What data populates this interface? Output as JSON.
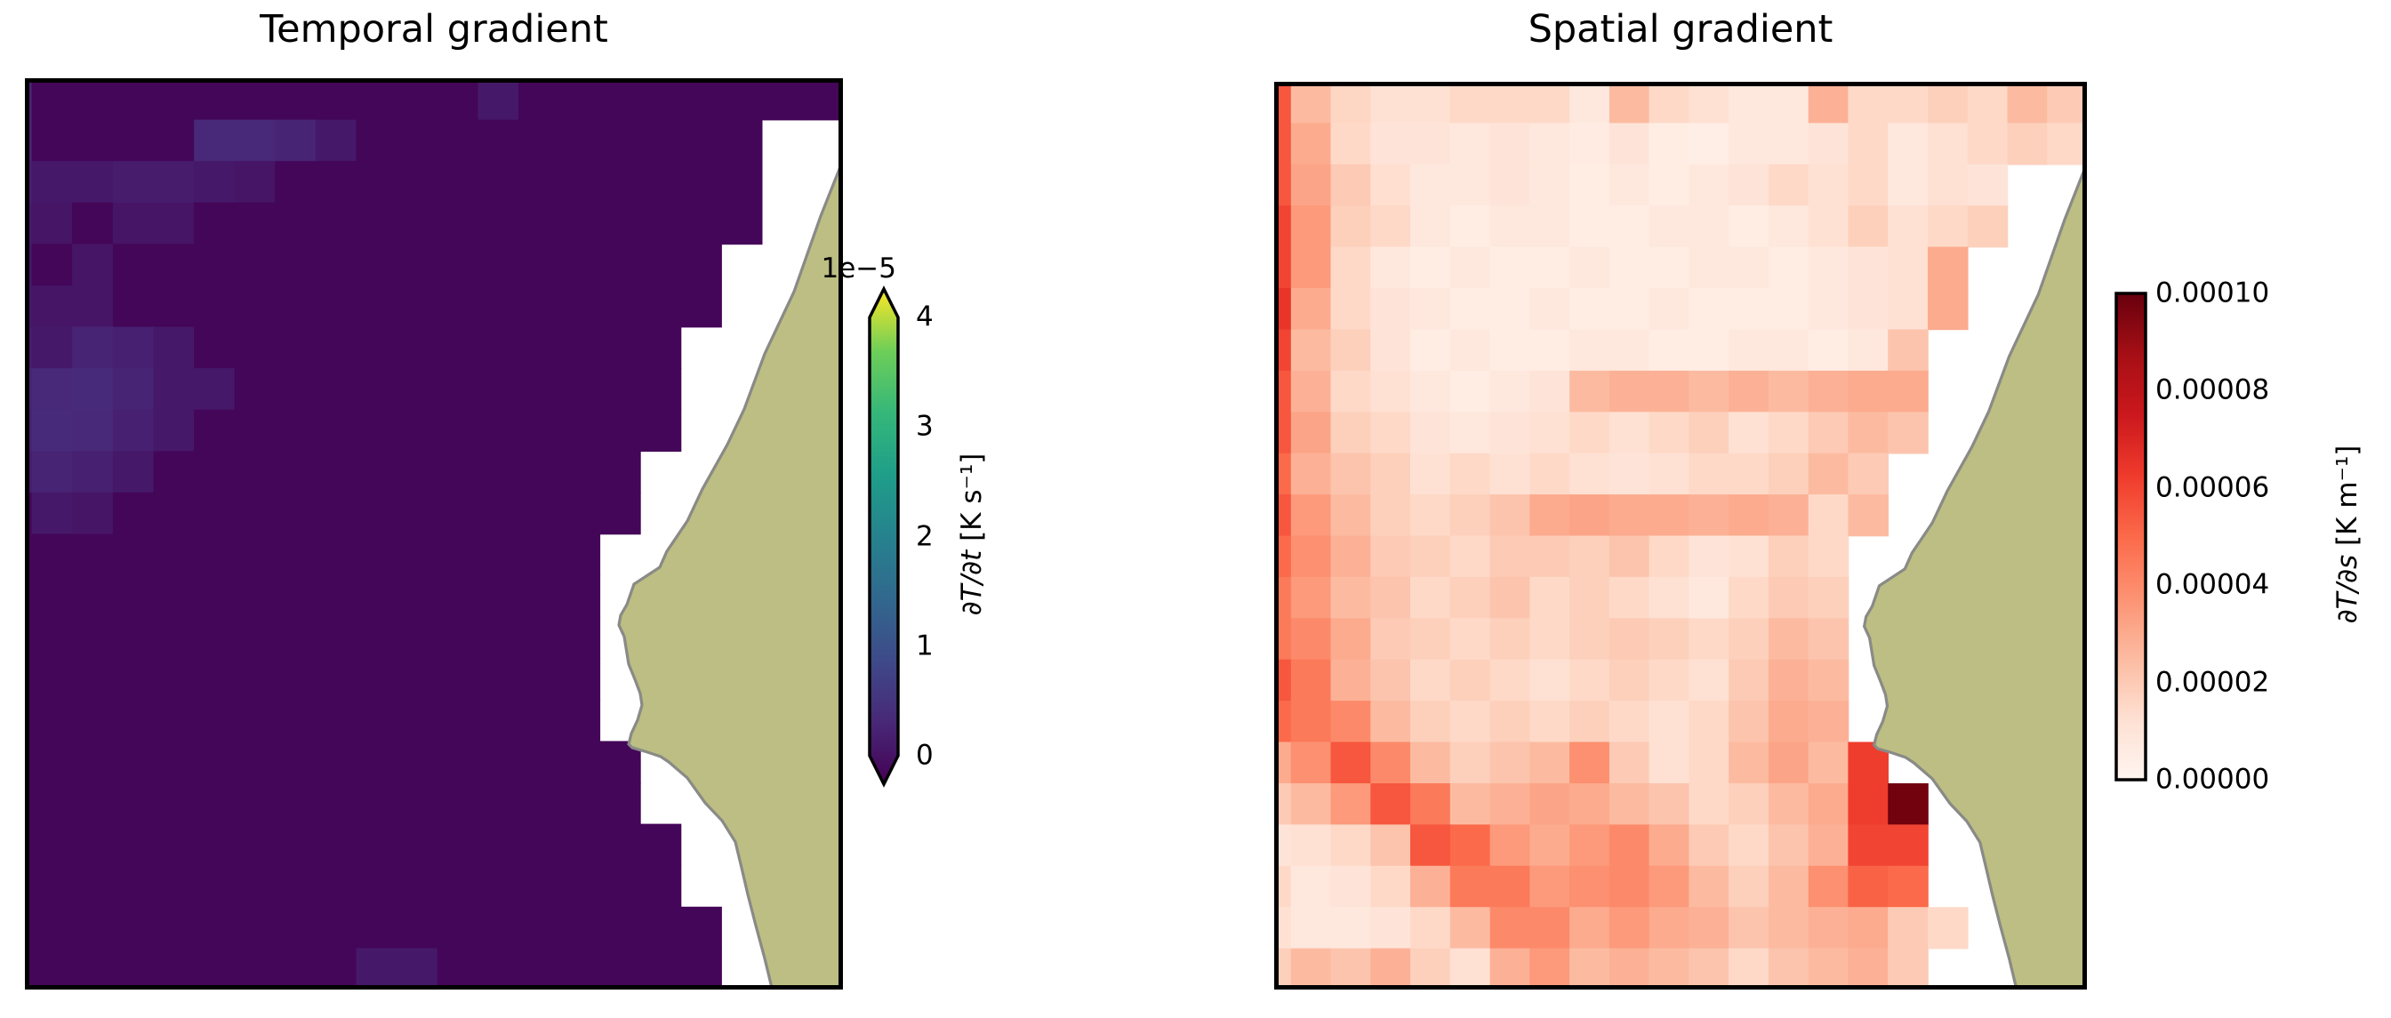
{
  "figure": {
    "background": "#ffffff"
  },
  "map": {
    "land_color": "#bcbe83",
    "land_edge_color": "#6f7045",
    "coast_color": "#8a8a8a",
    "coastline_points": [
      [
        920,
        92
      ],
      [
        895,
        155
      ],
      [
        865,
        240
      ],
      [
        832,
        310
      ],
      [
        809,
        372
      ],
      [
        790,
        412
      ],
      [
        762,
        462
      ],
      [
        745,
        498
      ],
      [
        722,
        532
      ],
      [
        714,
        550
      ],
      [
        685,
        569
      ],
      [
        677,
        592
      ],
      [
        670,
        604
      ],
      [
        668,
        615
      ],
      [
        674,
        628
      ],
      [
        679,
        659
      ],
      [
        686,
        676
      ],
      [
        692,
        692
      ],
      [
        694,
        705
      ],
      [
        689,
        722
      ],
      [
        682,
        737
      ],
      [
        679,
        749
      ],
      [
        683,
        753
      ],
      [
        697,
        757
      ],
      [
        715,
        763
      ],
      [
        724,
        769
      ],
      [
        745,
        787
      ],
      [
        765,
        815
      ],
      [
        784,
        835
      ],
      [
        799,
        859
      ],
      [
        806,
        888
      ],
      [
        813,
        918
      ],
      [
        822,
        953
      ],
      [
        832,
        990
      ],
      [
        840,
        1023
      ]
    ]
  },
  "colormaps": {
    "viridis": [
      "#440154",
      "#482878",
      "#3e4a89",
      "#31688e",
      "#26828e",
      "#1f9e89",
      "#35b779",
      "#6ece58",
      "#fde725"
    ],
    "reds": [
      "#fff5f0",
      "#fee0d2",
      "#fcbba1",
      "#fc9272",
      "#fb6a4a",
      "#ef3b2c",
      "#cb181d",
      "#a50f15",
      "#67000d"
    ]
  },
  "chart_data": [
    {
      "type": "heatmap",
      "title": "Temporal gradient",
      "colormap": "viridis",
      "units": "K s-1",
      "value_scale": "1e-5",
      "vmin": 0,
      "vmax": 4,
      "colorbar": {
        "extend": "both",
        "offset_label": "1e−5",
        "label_math": "∂T/∂t",
        "label_units": " [K s⁻¹]",
        "ticks": [
          {
            "pos": 0.0,
            "label": "0"
          },
          {
            "pos": 0.25,
            "label": "1"
          },
          {
            "pos": 0.5,
            "label": "2"
          },
          {
            "pos": 0.75,
            "label": "3"
          },
          {
            "pos": 1.0,
            "label": "4"
          }
        ]
      },
      "values": [
        [
          0.45,
          0.06,
          0.06,
          0.06,
          0.06,
          0.06,
          0.06,
          0.06,
          0.06,
          0.06,
          0.06,
          0.06,
          0.3,
          0.06,
          0.06,
          0.06,
          0.06,
          0.06,
          0.06,
          0.06,
          0.06
        ],
        [
          0.45,
          0.06,
          0.06,
          0.06,
          0.06,
          0.5,
          0.5,
          0.45,
          0.3,
          0.06,
          0.06,
          0.06,
          0.06,
          0.06,
          0.06,
          0.06,
          0.06,
          0.06,
          0.06,
          null,
          null
        ],
        [
          0.4,
          0.3,
          0.3,
          0.35,
          0.35,
          0.3,
          0.25,
          0.06,
          0.06,
          0.06,
          0.06,
          0.06,
          0.06,
          0.06,
          0.06,
          0.06,
          0.06,
          0.06,
          0.06,
          null,
          null
        ],
        [
          0.35,
          0.25,
          0.06,
          0.25,
          0.25,
          0.06,
          0.06,
          0.06,
          0.06,
          0.06,
          0.06,
          0.06,
          0.06,
          0.06,
          0.06,
          0.06,
          0.06,
          0.06,
          0.06,
          null,
          null
        ],
        [
          0.3,
          0.06,
          0.25,
          0.06,
          0.06,
          0.06,
          0.06,
          0.06,
          0.06,
          0.06,
          0.06,
          0.06,
          0.06,
          0.06,
          0.06,
          0.06,
          0.06,
          0.06,
          null,
          null,
          null
        ],
        [
          0.3,
          0.25,
          0.25,
          0.06,
          0.06,
          0.06,
          0.06,
          0.06,
          0.06,
          0.06,
          0.06,
          0.06,
          0.06,
          0.06,
          0.06,
          0.06,
          0.06,
          0.06,
          null,
          null,
          null
        ],
        [
          0.35,
          0.3,
          0.45,
          0.4,
          0.3,
          0.06,
          0.06,
          0.06,
          0.06,
          0.06,
          0.06,
          0.06,
          0.06,
          0.06,
          0.06,
          0.06,
          0.06,
          null,
          null,
          null,
          null
        ],
        [
          0.45,
          0.5,
          0.55,
          0.45,
          0.3,
          0.3,
          0.06,
          0.06,
          0.06,
          0.06,
          0.06,
          0.06,
          0.06,
          0.06,
          0.06,
          0.06,
          0.06,
          null,
          null,
          null,
          null
        ],
        [
          0.4,
          0.55,
          0.5,
          0.4,
          0.3,
          0.06,
          0.06,
          0.06,
          0.06,
          0.06,
          0.06,
          0.06,
          0.06,
          0.06,
          0.06,
          0.06,
          0.06,
          null,
          null,
          null,
          null
        ],
        [
          0.35,
          0.45,
          0.4,
          0.3,
          0.06,
          0.06,
          0.06,
          0.06,
          0.06,
          0.06,
          0.06,
          0.06,
          0.06,
          0.06,
          0.06,
          0.06,
          null,
          null,
          null,
          null,
          null
        ],
        [
          0.06,
          0.3,
          0.25,
          0.06,
          0.06,
          0.06,
          0.06,
          0.06,
          0.06,
          0.06,
          0.06,
          0.06,
          0.06,
          0.06,
          0.06,
          0.06,
          null,
          null,
          null,
          null,
          null
        ],
        [
          0.06,
          0.06,
          0.06,
          0.06,
          0.06,
          0.06,
          0.06,
          0.06,
          0.06,
          0.06,
          0.06,
          0.06,
          0.06,
          0.06,
          0.06,
          null,
          null,
          null,
          null,
          null,
          null
        ],
        [
          0.06,
          0.06,
          0.06,
          0.06,
          0.06,
          0.06,
          0.06,
          0.06,
          0.06,
          0.06,
          0.06,
          0.06,
          0.06,
          0.06,
          0.06,
          null,
          null,
          null,
          null,
          null,
          null
        ],
        [
          0.06,
          0.06,
          0.06,
          0.06,
          0.06,
          0.06,
          0.06,
          0.06,
          0.06,
          0.06,
          0.06,
          0.06,
          0.06,
          0.06,
          0.06,
          null,
          null,
          null,
          null,
          null,
          null
        ],
        [
          0.06,
          0.06,
          0.06,
          0.06,
          0.06,
          0.06,
          0.06,
          0.06,
          0.06,
          0.06,
          0.06,
          0.06,
          0.06,
          0.06,
          0.06,
          null,
          null,
          null,
          null,
          null,
          null
        ],
        [
          0.06,
          0.06,
          0.06,
          0.06,
          0.06,
          0.06,
          0.06,
          0.06,
          0.06,
          0.06,
          0.06,
          0.06,
          0.06,
          0.06,
          0.06,
          null,
          null,
          null,
          null,
          null,
          null
        ],
        [
          0.06,
          0.06,
          0.06,
          0.06,
          0.06,
          0.06,
          0.06,
          0.06,
          0.06,
          0.06,
          0.06,
          0.06,
          0.06,
          0.06,
          0.06,
          0.06,
          null,
          null,
          null,
          null,
          null
        ],
        [
          0.06,
          0.06,
          0.06,
          0.06,
          0.06,
          0.06,
          0.06,
          0.06,
          0.06,
          0.06,
          0.06,
          0.06,
          0.06,
          0.06,
          0.06,
          0.06,
          null,
          null,
          null,
          null,
          null
        ],
        [
          0.06,
          0.06,
          0.06,
          0.06,
          0.06,
          0.06,
          0.06,
          0.06,
          0.06,
          0.06,
          0.06,
          0.06,
          0.06,
          0.06,
          0.06,
          0.06,
          0.06,
          null,
          null,
          null,
          null
        ],
        [
          0.06,
          0.06,
          0.06,
          0.06,
          0.06,
          0.06,
          0.06,
          0.06,
          0.06,
          0.06,
          0.06,
          0.06,
          0.06,
          0.06,
          0.06,
          0.06,
          0.06,
          null,
          null,
          null,
          null
        ],
        [
          0.06,
          0.06,
          0.06,
          0.06,
          0.06,
          0.06,
          0.06,
          0.06,
          0.06,
          0.06,
          0.06,
          0.06,
          0.06,
          0.06,
          0.06,
          0.06,
          0.06,
          0.06,
          null,
          null,
          null
        ],
        [
          0.06,
          0.06,
          0.06,
          0.06,
          0.06,
          0.06,
          0.06,
          0.06,
          0.06,
          0.3,
          0.3,
          0.06,
          0.06,
          0.06,
          0.06,
          0.06,
          0.06,
          0.06,
          null,
          null,
          null
        ]
      ]
    },
    {
      "type": "heatmap",
      "title": "Spatial gradient",
      "colormap": "reds",
      "units": "K m-1",
      "value_scale": "1e-5",
      "vmin": 0,
      "vmax": 10,
      "colorbar": {
        "extend": "neither",
        "offset_label": "",
        "label_math": "∂T/∂s",
        "label_units": " [K m⁻¹]",
        "ticks": [
          {
            "pos": 0.0,
            "label": "0.00000"
          },
          {
            "pos": 0.2,
            "label": "0.00002"
          },
          {
            "pos": 0.4,
            "label": "0.00004"
          },
          {
            "pos": 0.6,
            "label": "0.00006"
          },
          {
            "pos": 0.8,
            "label": "0.00008"
          },
          {
            "pos": 1.0,
            "label": "0.00010"
          }
        ]
      },
      "values": [
        [
          5.5,
          2.5,
          1.6,
          1.2,
          1.2,
          1.5,
          1.5,
          1.5,
          0.8,
          2.5,
          1.5,
          1.2,
          0.8,
          0.8,
          2.8,
          1.5,
          1.5,
          1.8,
          1.5,
          2.5,
          2.0
        ],
        [
          5.5,
          3.0,
          1.5,
          1.0,
          1.0,
          0.8,
          1.0,
          0.8,
          0.6,
          1.0,
          0.5,
          0.4,
          0.8,
          0.8,
          1.0,
          1.5,
          0.8,
          1.2,
          1.5,
          1.8,
          1.5
        ],
        [
          5.5,
          3.2,
          2.0,
          1.3,
          0.8,
          0.8,
          1.0,
          0.8,
          0.5,
          0.8,
          0.5,
          0.8,
          1.0,
          1.5,
          1.2,
          1.5,
          0.8,
          1.2,
          1.0,
          null,
          null
        ],
        [
          6.0,
          3.5,
          1.8,
          1.5,
          0.8,
          0.5,
          0.8,
          0.8,
          0.5,
          0.5,
          0.8,
          0.8,
          0.5,
          0.8,
          1.2,
          1.8,
          1.2,
          1.5,
          1.8,
          null,
          null
        ],
        [
          6.0,
          3.5,
          1.5,
          0.8,
          0.5,
          0.8,
          0.5,
          0.5,
          0.8,
          0.5,
          0.5,
          0.8,
          0.8,
          0.5,
          0.8,
          1.0,
          1.2,
          3.0,
          null,
          null,
          null
        ],
        [
          6.5,
          3.0,
          1.5,
          1.0,
          0.8,
          0.5,
          0.5,
          0.8,
          0.5,
          0.5,
          0.8,
          0.5,
          0.5,
          0.5,
          0.8,
          1.0,
          1.2,
          3.0,
          null,
          null,
          null
        ],
        [
          6.0,
          2.5,
          1.8,
          1.0,
          0.5,
          0.8,
          0.5,
          0.5,
          0.8,
          0.8,
          0.5,
          0.5,
          0.8,
          0.8,
          0.5,
          0.8,
          2.2,
          null,
          null,
          null,
          null
        ],
        [
          5.5,
          2.8,
          1.5,
          1.2,
          0.8,
          0.5,
          0.8,
          1.0,
          2.5,
          2.8,
          2.8,
          2.5,
          2.8,
          2.5,
          2.8,
          3.0,
          3.0,
          null,
          null,
          null,
          null
        ],
        [
          5.5,
          3.2,
          1.8,
          1.5,
          1.0,
          0.8,
          1.0,
          1.2,
          1.5,
          1.2,
          1.5,
          1.8,
          1.2,
          1.5,
          2.0,
          2.5,
          2.2,
          null,
          null,
          null,
          null
        ],
        [
          5.0,
          2.8,
          2.2,
          1.8,
          1.2,
          1.5,
          1.2,
          1.5,
          1.2,
          1.0,
          1.2,
          1.5,
          1.5,
          1.8,
          2.5,
          2.0,
          null,
          null,
          null,
          null,
          null
        ],
        [
          5.5,
          3.5,
          2.5,
          1.8,
          1.5,
          1.8,
          2.2,
          3.0,
          3.2,
          3.0,
          3.0,
          2.8,
          3.0,
          2.8,
          1.5,
          2.5,
          null,
          null,
          null,
          null,
          null
        ],
        [
          5.0,
          3.8,
          2.8,
          2.0,
          1.8,
          1.5,
          2.0,
          2.0,
          1.8,
          2.2,
          1.5,
          1.0,
          1.2,
          1.8,
          1.5,
          null,
          null,
          null,
          null,
          null,
          null
        ],
        [
          4.5,
          3.5,
          2.5,
          2.2,
          1.5,
          1.8,
          2.2,
          1.5,
          1.8,
          1.5,
          1.2,
          0.8,
          1.5,
          2.0,
          1.8,
          null,
          null,
          null,
          null,
          null,
          null
        ],
        [
          4.5,
          4.0,
          3.0,
          2.0,
          1.8,
          1.5,
          1.8,
          1.5,
          1.8,
          2.0,
          1.8,
          1.5,
          1.8,
          2.5,
          2.2,
          null,
          null,
          null,
          null,
          null,
          null
        ],
        [
          5.5,
          4.5,
          2.8,
          2.2,
          1.5,
          1.8,
          1.5,
          1.2,
          1.5,
          1.8,
          1.5,
          1.2,
          2.0,
          2.8,
          2.5,
          null,
          null,
          null,
          null,
          null,
          null
        ],
        [
          5.0,
          4.5,
          4.0,
          2.5,
          1.8,
          1.5,
          1.8,
          1.5,
          1.8,
          1.5,
          1.2,
          1.5,
          2.2,
          3.0,
          2.8,
          null,
          null,
          null,
          null,
          null,
          null
        ],
        [
          3.0,
          3.8,
          5.5,
          4.0,
          2.5,
          1.8,
          2.2,
          2.5,
          3.8,
          2.0,
          1.2,
          1.5,
          2.5,
          3.2,
          2.5,
          6.2,
          null,
          null,
          null,
          null,
          null
        ],
        [
          2.0,
          2.5,
          3.5,
          5.5,
          4.5,
          2.5,
          2.8,
          3.2,
          3.0,
          2.5,
          2.2,
          1.5,
          1.8,
          2.5,
          3.0,
          6.2,
          9.8,
          null,
          null,
          null,
          null
        ],
        [
          1.0,
          1.2,
          1.5,
          2.2,
          5.5,
          5.0,
          3.5,
          3.0,
          3.5,
          4.0,
          3.0,
          2.0,
          1.5,
          2.2,
          2.8,
          6.0,
          6.0,
          null,
          null,
          null,
          null
        ],
        [
          1.5,
          0.8,
          1.0,
          1.5,
          2.8,
          4.5,
          4.5,
          3.5,
          3.8,
          4.0,
          3.5,
          2.5,
          1.8,
          2.5,
          3.8,
          5.2,
          5.0,
          null,
          null,
          null,
          null
        ],
        [
          1.2,
          0.8,
          0.8,
          1.0,
          1.5,
          2.5,
          4.0,
          4.0,
          3.0,
          3.5,
          3.0,
          2.8,
          2.2,
          2.5,
          2.8,
          3.0,
          2.0,
          1.5,
          null,
          null,
          null
        ],
        [
          1.8,
          2.5,
          2.2,
          2.8,
          1.8,
          1.2,
          2.8,
          3.5,
          2.5,
          2.8,
          2.5,
          2.2,
          1.5,
          2.2,
          2.5,
          2.8,
          2.0,
          null,
          null,
          null,
          null
        ]
      ]
    }
  ]
}
